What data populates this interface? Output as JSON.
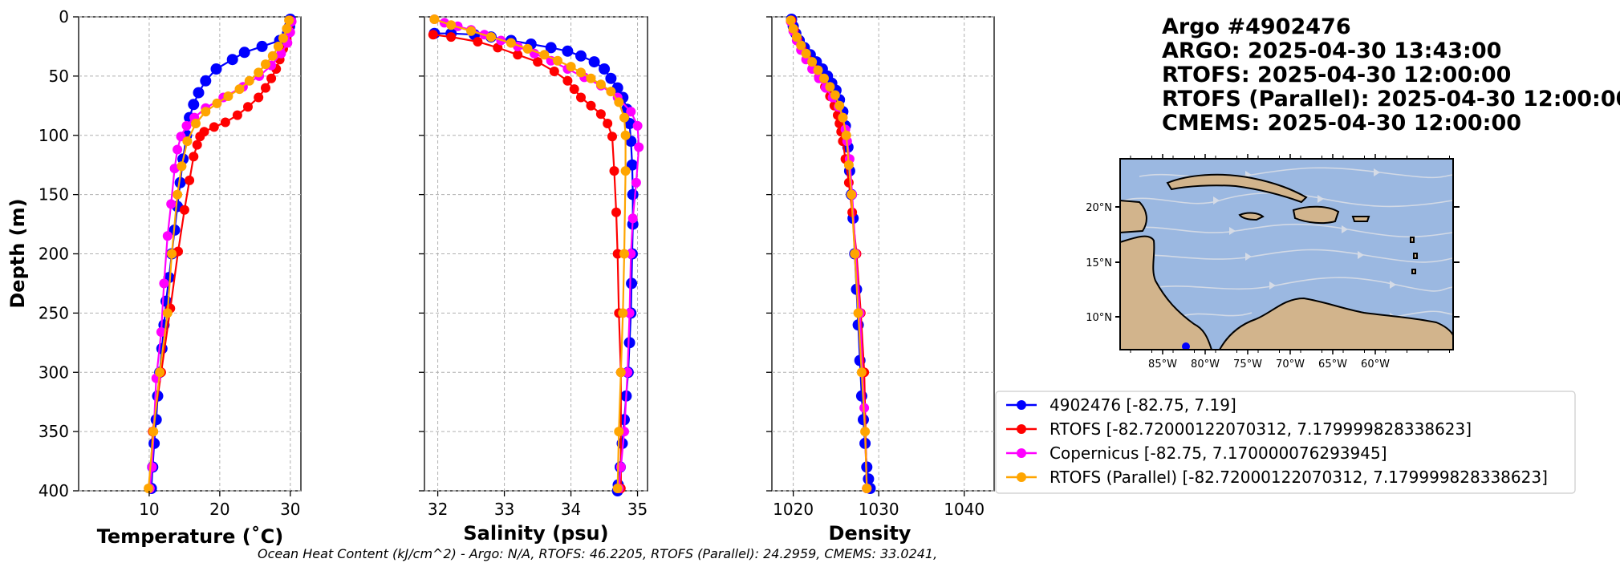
{
  "title_lines": [
    "Argo #4902476",
    "ARGO:  2025-04-30 13:43:00",
    "RTOFS: 2025-04-30 12:00:00",
    "RTOFS (Parallel): 2025-04-30 12:00:00",
    "CMEMS: 2025-04-30 12:00:00"
  ],
  "footer": "Ocean Heat Content (kJ/cm^2) - Argo: N/A,  RTOFS: 46.2205,  RTOFS (Parallel): 24.2959,  CMEMS: 33.0241,",
  "legend": [
    {
      "label": "4902476 [-82.75, 7.19]",
      "color": "#0000ff"
    },
    {
      "label": "RTOFS [-82.72000122070312, 7.179999828338623]",
      "color": "#ff0000"
    },
    {
      "label": "Copernicus [-82.75, 7.170000076293945]",
      "color": "#ff00ff"
    },
    {
      "label": "RTOFS (Parallel) [-82.72000122070312, 7.179999828338623]",
      "color": "#ffa500"
    }
  ],
  "chart_data": [
    {
      "type": "line",
      "xlabel": "Temperature (˚C)",
      "ylabel": "Depth (m)",
      "xlim": [
        0,
        31.5
      ],
      "ylim": [
        400,
        0
      ],
      "xticks": [
        10,
        20,
        30
      ],
      "xtick_labels": [
        "10",
        "20",
        "30"
      ],
      "yticks": [
        0,
        50,
        100,
        150,
        200,
        250,
        300,
        350,
        400
      ],
      "ytick_labels": [
        "0",
        "50",
        "100",
        "150",
        "200",
        "250",
        "300",
        "350",
        "400"
      ],
      "grid": true,
      "series": [
        {
          "name": "4902476 [-82.75, 7.19]",
          "color": "#0000ff",
          "marker_size": 7,
          "x": [
            30.0,
            29.9,
            29.6,
            28.5,
            26.0,
            23.5,
            21.8,
            19.5,
            18.0,
            17.0,
            16.3,
            15.7,
            15.3,
            14.8,
            14.4,
            14.0,
            13.6,
            13.2,
            12.8,
            12.4,
            12.1,
            11.8,
            11.5,
            11.2,
            11.0,
            10.7,
            10.5,
            10.3
          ],
          "y": [
            2,
            8,
            14,
            20,
            25,
            30,
            36,
            44,
            54,
            64,
            74,
            85,
            100,
            120,
            140,
            160,
            180,
            200,
            220,
            240,
            260,
            280,
            300,
            320,
            340,
            360,
            380,
            398
          ]
        },
        {
          "name": "RTOFS [-82.72000122070312, 7.179999828338623]",
          "color": "#ff0000",
          "marker_size": 6,
          "x": [
            30.0,
            29.8,
            29.5,
            29.0,
            28.5,
            28.0,
            27.3,
            26.5,
            25.5,
            24.0,
            22.5,
            20.8,
            19.2,
            17.8,
            17.2,
            16.8,
            16.3,
            15.7,
            15.0,
            14.1,
            13.0,
            11.7,
            10.5,
            10.1
          ],
          "y": [
            3,
            11,
            19,
            27,
            36,
            44,
            52,
            60,
            68,
            76,
            83,
            89,
            93,
            97,
            101,
            108,
            118,
            138,
            163,
            198,
            246,
            300,
            350,
            398
          ]
        },
        {
          "name": "Copernicus [-82.75, 7.170000076293945]",
          "color": "#ff00ff",
          "marker_size": 6,
          "x": [
            30.2,
            30.0,
            29.6,
            28.7,
            27.3,
            25.6,
            23.3,
            20.5,
            18.0,
            16.4,
            15.3,
            14.5,
            14.0,
            13.6,
            13.1,
            12.6,
            12.1,
            11.7,
            11.0,
            10.4,
            10.1
          ],
          "y": [
            4,
            13,
            22,
            31,
            41,
            50,
            59,
            68,
            77,
            85,
            92,
            101,
            112,
            128,
            158,
            185,
            225,
            266,
            305,
            380,
            398
          ]
        },
        {
          "name": "RTOFS (Parallel) [-82.72000122070312, 7.179999828338623]",
          "color": "#ffa500",
          "marker_size": 6,
          "x": [
            29.8,
            29.5,
            29.0,
            28.3,
            27.5,
            26.5,
            25.5,
            24.2,
            22.8,
            21.2,
            19.6,
            18.0,
            16.6,
            15.4,
            14.6,
            14.0,
            13.2,
            12.6,
            11.5,
            10.6,
            9.9
          ],
          "y": [
            3,
            10,
            18,
            25,
            33,
            40,
            47,
            54,
            61,
            67,
            73,
            80,
            90,
            105,
            126,
            150,
            200,
            250,
            300,
            350,
            398
          ]
        }
      ]
    },
    {
      "type": "line",
      "xlabel": "Salinity (psu)",
      "xlim": [
        31.8,
        35.15
      ],
      "ylim": [
        400,
        0
      ],
      "xticks": [
        32,
        33,
        34,
        35
      ],
      "xtick_labels": [
        "32",
        "33",
        "34",
        "35"
      ],
      "yticks": [
        0,
        50,
        100,
        150,
        200,
        250,
        300,
        350,
        400
      ],
      "grid": true,
      "series": [
        {
          "name": "4902476 [-82.75, 7.19]",
          "color": "#0000ff",
          "marker_size": 7,
          "x": [
            31.95,
            32.2,
            32.55,
            32.8,
            33.1,
            33.4,
            33.7,
            33.95,
            34.15,
            34.35,
            34.5,
            34.6,
            34.7,
            34.78,
            34.84,
            34.88,
            34.9,
            34.92,
            34.93,
            34.93,
            34.92,
            34.91,
            34.9,
            34.88,
            34.86,
            34.83,
            34.8,
            34.77,
            34.74,
            34.71,
            34.7
          ],
          "y": [
            14,
            14,
            15,
            17,
            20,
            23,
            26,
            29,
            33,
            38,
            44,
            52,
            60,
            68,
            78,
            90,
            105,
            125,
            150,
            175,
            200,
            225,
            250,
            275,
            300,
            320,
            340,
            360,
            380,
            395,
            400
          ]
        },
        {
          "name": "RTOFS [-82.72000122070312, 7.179999828338623]",
          "color": "#ff0000",
          "marker_size": 6,
          "x": [
            31.93,
            32.2,
            32.6,
            32.9,
            33.2,
            33.5,
            33.75,
            33.95,
            34.05,
            34.15,
            34.3,
            34.45,
            34.55,
            34.62,
            34.65,
            34.68,
            34.7,
            34.72,
            34.75,
            34.75
          ],
          "y": [
            15,
            17,
            21,
            26,
            32,
            38,
            46,
            54,
            61,
            68,
            75,
            82,
            90,
            101,
            130,
            165,
            200,
            250,
            300,
            398
          ]
        },
        {
          "name": "Copernicus [-82.75, 7.170000076293945]",
          "color": "#ff00ff",
          "marker_size": 6,
          "x": [
            31.95,
            32.1,
            32.3,
            32.5,
            32.7,
            32.95,
            33.2,
            33.45,
            33.7,
            33.95,
            34.2,
            34.45,
            34.7,
            34.9,
            35.0,
            35.02,
            34.98,
            34.93,
            34.9,
            34.88,
            34.85,
            34.8,
            34.75,
            34.72
          ],
          "y": [
            2,
            5,
            8,
            11,
            15,
            20,
            25,
            31,
            37,
            44,
            51,
            58,
            68,
            80,
            92,
            110,
            140,
            170,
            200,
            250,
            300,
            350,
            380,
            398
          ]
        },
        {
          "name": "RTOFS (Parallel) [-82.72000122070312, 7.179999828338623]",
          "color": "#ffa500",
          "marker_size": 6,
          "x": [
            31.95,
            32.2,
            32.5,
            32.8,
            33.1,
            33.35,
            33.6,
            33.8,
            34.0,
            34.15,
            34.3,
            34.45,
            34.6,
            34.72,
            34.8,
            34.82,
            34.82,
            34.8,
            34.78,
            34.75,
            34.72,
            34.7
          ],
          "y": [
            2,
            7,
            12,
            17,
            22,
            27,
            32,
            37,
            42,
            47,
            52,
            57,
            63,
            72,
            85,
            100,
            130,
            200,
            250,
            300,
            350,
            398
          ]
        }
      ]
    },
    {
      "type": "line",
      "xlabel": "Density",
      "xlim": [
        1017.5,
        1043.5
      ],
      "ylim": [
        400,
        0
      ],
      "xticks": [
        1020,
        1030,
        1040
      ],
      "xtick_labels": [
        "1020",
        "1030",
        "1040"
      ],
      "yticks": [
        0,
        50,
        100,
        150,
        200,
        250,
        300,
        350,
        400
      ],
      "grid": true,
      "series": [
        {
          "name": "4902476 [-82.75, 7.19]",
          "color": "#0000ff",
          "marker_size": 7,
          "x": [
            1019.8,
            1020.0,
            1020.3,
            1020.7,
            1021.3,
            1022.0,
            1022.7,
            1023.4,
            1024.0,
            1024.5,
            1025.0,
            1025.4,
            1025.8,
            1026.1,
            1026.4,
            1026.6,
            1026.8,
            1027.0,
            1027.2,
            1027.4,
            1027.6,
            1027.8,
            1028.0,
            1028.2,
            1028.4,
            1028.6,
            1028.8,
            1029.0
          ],
          "y": [
            2,
            8,
            14,
            20,
            26,
            32,
            38,
            44,
            50,
            56,
            62,
            70,
            80,
            92,
            110,
            130,
            150,
            170,
            200,
            230,
            260,
            290,
            320,
            340,
            360,
            380,
            390,
            398
          ]
        },
        {
          "name": "RTOFS [-82.72000122070312, 7.179999828338623]",
          "color": "#ff0000",
          "marker_size": 6,
          "x": [
            1019.8,
            1020.1,
            1020.5,
            1021.0,
            1021.6,
            1022.3,
            1023.0,
            1023.7,
            1024.3,
            1024.8,
            1025.2,
            1025.4,
            1025.6,
            1025.8,
            1026.1,
            1026.5,
            1026.9,
            1027.4,
            1027.9,
            1028.3,
            1028.6
          ],
          "y": [
            3,
            11,
            19,
            27,
            35,
            43,
            51,
            59,
            67,
            75,
            83,
            90,
            97,
            105,
            120,
            140,
            165,
            200,
            250,
            300,
            398
          ]
        },
        {
          "name": "Copernicus [-82.75, 7.170000076293945]",
          "color": "#ff00ff",
          "marker_size": 6,
          "x": [
            1019.7,
            1020.0,
            1020.4,
            1020.9,
            1021.5,
            1022.2,
            1023.0,
            1023.8,
            1024.6,
            1025.3,
            1025.8,
            1026.1,
            1026.3,
            1026.6,
            1026.9,
            1027.3,
            1027.8,
            1028.3,
            1028.6
          ],
          "y": [
            4,
            12,
            20,
            28,
            36,
            44,
            52,
            60,
            68,
            76,
            85,
            95,
            105,
            120,
            150,
            200,
            250,
            330,
            398
          ]
        },
        {
          "name": "RTOFS (Parallel) [-82.72000122070312, 7.179999828338623]",
          "color": "#ffa500",
          "marker_size": 6,
          "x": [
            1019.7,
            1020.0,
            1020.4,
            1020.9,
            1021.5,
            1022.2,
            1022.9,
            1023.6,
            1024.3,
            1024.9,
            1025.4,
            1025.8,
            1026.2,
            1026.5,
            1026.8,
            1027.2,
            1027.6,
            1028.0,
            1028.4,
            1028.6
          ],
          "y": [
            3,
            10,
            17,
            24,
            31,
            38,
            45,
            52,
            59,
            66,
            75,
            85,
            100,
            125,
            150,
            200,
            250,
            300,
            350,
            398
          ]
        }
      ]
    }
  ],
  "map": {
    "lon_ticks": [
      "85°W",
      "80°W",
      "75°W",
      "70°W",
      "65°W",
      "60°W"
    ],
    "lat_ticks": [
      "20°N",
      "15°N",
      "10°N"
    ],
    "ocean_color": "#9bb8e1",
    "land_color": "#d2b48c",
    "marker_color": "#0000ff"
  }
}
